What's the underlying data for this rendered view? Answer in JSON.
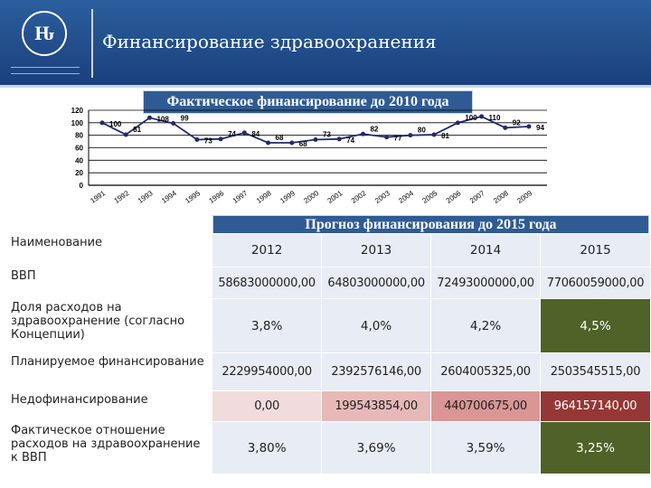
{
  "header": {
    "title": "Финансирование здравоохранения",
    "logo_text": "НИУ ВШЭ"
  },
  "chart_data": {
    "type": "line",
    "title": "Фактическое финансирование до 2010 года",
    "categories": [
      "1991",
      "1992",
      "1993",
      "1994",
      "1995",
      "1996",
      "1997",
      "1998",
      "1999",
      "2000",
      "2001",
      "2002",
      "2003",
      "2004",
      "2005",
      "2006",
      "2007",
      "2008",
      "2009"
    ],
    "values": [
      100,
      81,
      108,
      99,
      73,
      74,
      84,
      68,
      68,
      73,
      74,
      82,
      77,
      80,
      81,
      100,
      110,
      92,
      94
    ],
    "ylim": [
      0,
      120
    ],
    "yticks": [
      0,
      20,
      40,
      60,
      80,
      100,
      120
    ],
    "grid": true,
    "color": "#1f2a6b"
  },
  "table": {
    "title": "Прогноз финансирования  до 2015 года",
    "header_label": "Наименование",
    "years": [
      "2012",
      "2013",
      "2014",
      "2015"
    ],
    "rows": [
      {
        "name": "ВВП",
        "values": [
          "58683000000,00",
          "64803000000,00",
          "72493000000,00",
          "77060059000,00"
        ]
      },
      {
        "name": "Доля расходов на здравоохранение (согласно Концепции)",
        "values": [
          "3,8%",
          "4,0%",
          "4,2%",
          "4,5%"
        ]
      },
      {
        "name": "Планируемое финансирование",
        "values": [
          "2229954000,00",
          "2392576146,00",
          "2604005325,00",
          "2503545515,00"
        ]
      },
      {
        "name": "Недофинансирование",
        "values": [
          "0,00",
          "199543854,00",
          "440700675,00",
          "964157140,00"
        ]
      },
      {
        "name": "Фактическое отношение расходов на здравоохранение к ВВП",
        "values": [
          "3,80%",
          "3,69%",
          "3,59%",
          "3,25%"
        ]
      }
    ]
  },
  "colors": {
    "header": "#1f4583",
    "banner": "#2f5b94",
    "highlight_green": "#4f6228",
    "underfund": [
      "#f2dcdb",
      "#e6b9b8",
      "#d99694",
      "#953735"
    ]
  }
}
